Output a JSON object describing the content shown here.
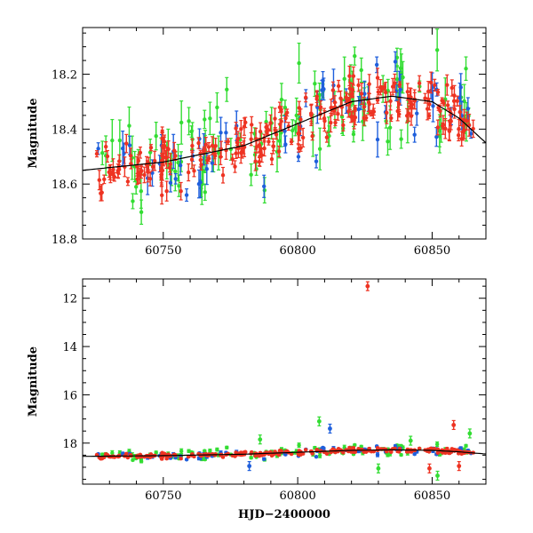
{
  "chart_data": [
    {
      "type": "scatter",
      "title": "",
      "xlabel": "",
      "ylabel": "Magnitude",
      "xlim": [
        60720,
        60870
      ],
      "ylim": [
        18.8,
        18.03
      ],
      "y_inverted": true,
      "x_ticks": [
        60750,
        60800,
        60850
      ],
      "x_tick_labels": [
        "60750",
        "60800",
        "60850"
      ],
      "y_ticks": [
        18.2,
        18.4,
        18.6,
        18.8
      ],
      "y_tick_labels": [
        "18.2",
        "18.4",
        "18.6",
        "18.8"
      ],
      "x_minor_step": 10,
      "y_minor_step": 0.05,
      "fit_line": {
        "x": [
          60720,
          60750,
          60780,
          60800,
          60820,
          60835,
          60850,
          60860,
          60870
        ],
        "y": [
          18.55,
          18.52,
          18.46,
          18.38,
          18.3,
          18.28,
          18.3,
          18.36,
          18.45
        ]
      },
      "series": [
        {
          "color": "#33dd33",
          "error_scale": 0.05,
          "n_points": 110,
          "scatter": 0.09
        },
        {
          "color": "#1f5fdc",
          "error_scale": 0.04,
          "n_points": 60,
          "scatter": 0.07
        },
        {
          "color": "#ee3322",
          "error_scale": 0.025,
          "n_points": 260,
          "scatter": 0.045
        }
      ]
    },
    {
      "type": "scatter",
      "title": "",
      "xlabel": "HJD−2400000",
      "ylabel": "Magnitude",
      "xlim": [
        60720,
        60870
      ],
      "ylim": [
        19.7,
        11.2
      ],
      "y_inverted": true,
      "x_ticks": [
        60750,
        60800,
        60850
      ],
      "x_tick_labels": [
        "60750",
        "60800",
        "60850"
      ],
      "y_ticks": [
        12,
        14,
        16,
        18
      ],
      "y_tick_labels": [
        "12",
        "14",
        "16",
        "18"
      ],
      "x_minor_step": 10,
      "y_minor_step": 0.5,
      "fit_line": {
        "x": [
          60720,
          60750,
          60780,
          60800,
          60820,
          60835,
          60850,
          60860,
          60870
        ],
        "y": [
          18.55,
          18.52,
          18.46,
          18.38,
          18.3,
          18.28,
          18.3,
          18.36,
          18.45
        ]
      },
      "outliers": [
        {
          "x": 60826,
          "y": 11.5,
          "color": "#ee3322"
        },
        {
          "x": 60808,
          "y": 17.1,
          "color": "#33dd33"
        },
        {
          "x": 60812,
          "y": 17.4,
          "color": "#1f5fdc"
        },
        {
          "x": 60858,
          "y": 17.25,
          "color": "#ee3322"
        },
        {
          "x": 60864,
          "y": 17.6,
          "color": "#33dd33"
        },
        {
          "x": 60782,
          "y": 18.95,
          "color": "#1f5fdc"
        },
        {
          "x": 60830,
          "y": 19.05,
          "color": "#33dd33"
        },
        {
          "x": 60849,
          "y": 19.05,
          "color": "#ee3322"
        },
        {
          "x": 60852,
          "y": 19.35,
          "color": "#33dd33"
        },
        {
          "x": 60786,
          "y": 17.85,
          "color": "#33dd33"
        },
        {
          "x": 60842,
          "y": 17.9,
          "color": "#33dd33"
        },
        {
          "x": 60860,
          "y": 18.95,
          "color": "#ee3322"
        }
      ],
      "series": [
        {
          "color": "#33dd33",
          "error_scale": 0.06,
          "n_points": 110,
          "scatter": 0.12
        },
        {
          "color": "#1f5fdc",
          "error_scale": 0.05,
          "n_points": 60,
          "scatter": 0.09
        },
        {
          "color": "#ee3322",
          "error_scale": 0.03,
          "n_points": 260,
          "scatter": 0.05
        }
      ]
    }
  ]
}
